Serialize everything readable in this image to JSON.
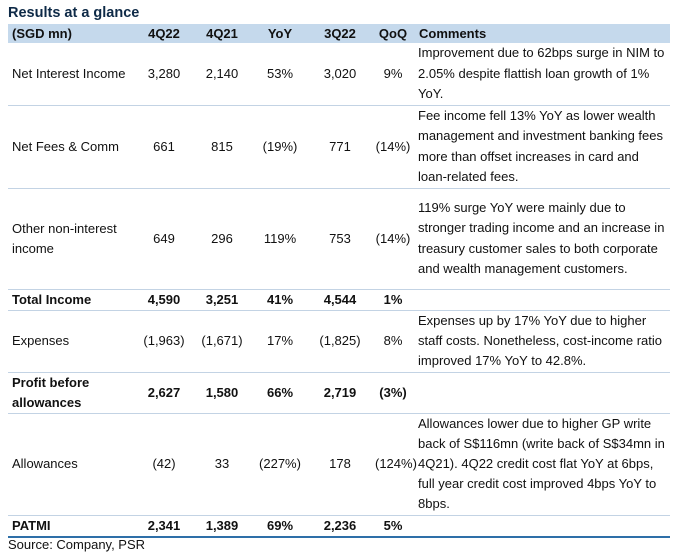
{
  "title": "Results at a glance",
  "columns": [
    "(SGD mn)",
    "4Q22",
    "4Q21",
    "YoY",
    "3Q22",
    "QoQ",
    "Comments"
  ],
  "rows": [
    {
      "label": "Net Interest Income",
      "q4_22": "3,280",
      "q4_21": "2,140",
      "yoy": "53%",
      "q3_22": "3,020",
      "qoq": "9%",
      "comment": "Improvement due to 62bps surge in NIM to 2.05% despite flattish loan growth of 1% YoY.",
      "bold": false
    },
    {
      "label": "Net Fees & Comm",
      "q4_22": "661",
      "q4_21": "815",
      "yoy": "(19%)",
      "q3_22": "771",
      "qoq": "(14%)",
      "comment": "Fee income fell 13% YoY as lower wealth management and investment banking fees more than offset increases in card and loan-related fees.",
      "bold": false
    },
    {
      "label": "Other non-interest income",
      "q4_22": "649",
      "q4_21": "296",
      "yoy": "119%",
      "q3_22": "753",
      "qoq": "(14%)",
      "comment": "119% surge YoY were mainly due to stronger trading income and an increase in treasury customer sales to both corporate and wealth management customers.",
      "bold": false
    },
    {
      "label": "Total Income",
      "q4_22": "4,590",
      "q4_21": "3,251",
      "yoy": "41%",
      "q3_22": "4,544",
      "qoq": "1%",
      "comment": "",
      "bold": true
    },
    {
      "label": "Expenses",
      "q4_22": "(1,963)",
      "q4_21": "(1,671)",
      "yoy": "17%",
      "q3_22": "(1,825)",
      "qoq": "8%",
      "comment": "Expenses up by 17% YoY due to higher staff costs. Nonetheless, cost-income ratio improved 17% YoY to 42.8%.",
      "bold": false
    },
    {
      "label": "Profit before allowances",
      "q4_22": "2,627",
      "q4_21": "1,580",
      "yoy": "66%",
      "q3_22": "2,719",
      "qoq": "(3%)",
      "comment": "",
      "bold": true
    },
    {
      "label": "Allowances",
      "q4_22": "(42)",
      "q4_21": "33",
      "yoy": "(227%)",
      "q3_22": "178",
      "qoq": "(124%)",
      "comment": "Allowances lower due to higher GP write back of S$116mn (write back of S$34mn in 4Q21). 4Q22 credit cost flat YoY at 6bps, full year credit cost improved 4bps YoY to 8bps.",
      "bold": false
    },
    {
      "label": "PATMI",
      "q4_22": "2,341",
      "q4_21": "1,389",
      "yoy": "69%",
      "q3_22": "2,236",
      "qoq": "5%",
      "comment": "",
      "bold": true
    }
  ],
  "source": "Source: Company, PSR"
}
